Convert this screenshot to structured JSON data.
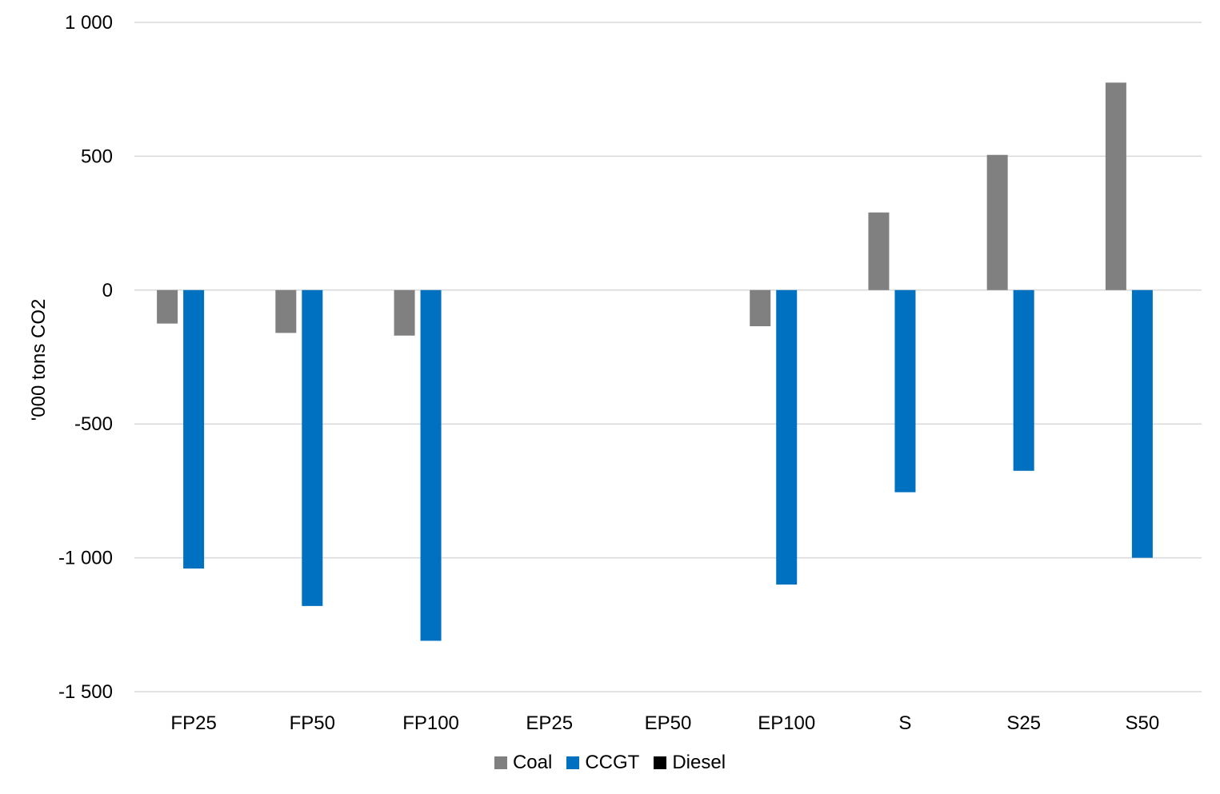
{
  "chart_data": {
    "type": "bar",
    "title": "",
    "xlabel": "",
    "ylabel": "'000 tons CO2",
    "ylim": [
      -1500,
      1000
    ],
    "yticks": [
      1000,
      500,
      0,
      -500,
      -1000,
      -1500
    ],
    "ytick_labels": [
      "1 000",
      "500",
      "0",
      "-500",
      "-1 000",
      "-1 500"
    ],
    "grid": true,
    "legend_position": "bottom",
    "categories": [
      "FP25",
      "FP50",
      "FP100",
      "EP25",
      "EP50",
      "EP100",
      "S",
      "S25",
      "S50"
    ],
    "series": [
      {
        "name": "Coal",
        "color": "#808080",
        "values": [
          -125,
          -160,
          -170,
          0,
          0,
          -135,
          290,
          505,
          775
        ]
      },
      {
        "name": "CCGT",
        "color": "#0070C0",
        "values": [
          -1040,
          -1180,
          -1310,
          0,
          0,
          -1100,
          -755,
          -675,
          -1000
        ]
      },
      {
        "name": "Diesel",
        "color": "#000000",
        "values": [
          0,
          0,
          0,
          0,
          0,
          0,
          0,
          0,
          0
        ]
      }
    ]
  }
}
